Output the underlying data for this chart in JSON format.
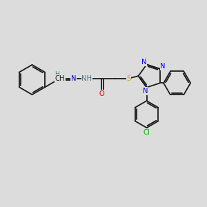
{
  "bg_color": "#dcdcdc",
  "bond_color": "#1a1a1a",
  "bond_lw": 1.3,
  "atom_colors": {
    "N": "#0000ee",
    "O": "#ee0000",
    "S": "#ccaa00",
    "Cl": "#00aa00",
    "C": "#1a1a1a",
    "H": "#4a7a8a"
  },
  "font_size": 7.2
}
